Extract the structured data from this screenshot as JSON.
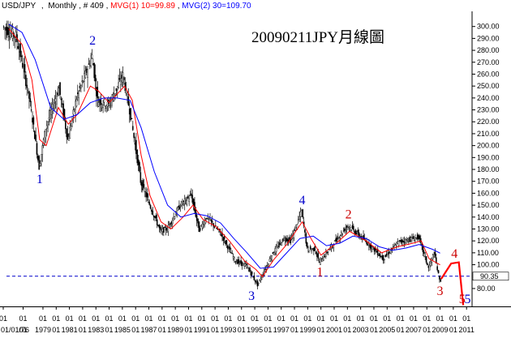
{
  "header": {
    "symbol": "USD/JPY",
    "sep": ",",
    "period": "Monthly",
    "bars": "# 409",
    "mvg1_label": "MVG(1) 10=99.89",
    "mvg2_label": "MVG(2) 30=109.70",
    "colors": {
      "mvg1": "#ff0000",
      "mvg2": "#0000ff"
    }
  },
  "chart_data": {
    "type": "candlestick",
    "title": "20090211JPY月線圖",
    "ylim": [
      65,
      310
    ],
    "y_ticks": [
      {
        "v": 300,
        "label": "300.00"
      },
      {
        "v": 290,
        "label": "290.00"
      },
      {
        "v": 280,
        "label": "280.00"
      },
      {
        "v": 270,
        "label": "270.00"
      },
      {
        "v": 260,
        "label": "260.00"
      },
      {
        "v": 250,
        "label": "250.00"
      },
      {
        "v": 240,
        "label": "240.00"
      },
      {
        "v": 230,
        "label": "230.00"
      },
      {
        "v": 220,
        "label": "220.00"
      },
      {
        "v": 210,
        "label": "210.00"
      },
      {
        "v": 200,
        "label": "200.00"
      },
      {
        "v": 190,
        "label": "190.00"
      },
      {
        "v": 180,
        "label": "180.00"
      },
      {
        "v": 170,
        "label": "170.00"
      },
      {
        "v": 160,
        "label": "160.00"
      },
      {
        "v": 150,
        "label": "150.00"
      },
      {
        "v": 140,
        "label": "140.00"
      },
      {
        "v": 130,
        "label": "130.00"
      },
      {
        "v": 120,
        "label": "120.00"
      },
      {
        "v": 110,
        "label": "110.00"
      },
      {
        "v": 100,
        "label": "100.00"
      },
      {
        "v": 80,
        "label": "80.00"
      }
    ],
    "last_price": {
      "v": 90.35,
      "label": "90.35"
    },
    "x_start": "1976-01",
    "x_end": "2011-06",
    "x_ticks": [
      {
        "date": "1976-01",
        "label": "01/01/76"
      },
      {
        "date": "1977-07",
        "label": "01"
      },
      {
        "date": "1979-01",
        "label": "1979"
      },
      {
        "date": "1980-01",
        "label": "01"
      },
      {
        "date": "1981-01",
        "label": "1981"
      },
      {
        "date": "1982-01",
        "label": "01"
      },
      {
        "date": "1983-01",
        "label": "1983"
      },
      {
        "date": "1984-01",
        "label": "01"
      },
      {
        "date": "1985-01",
        "label": "1985"
      },
      {
        "date": "1986-01",
        "label": "01"
      },
      {
        "date": "1987-01",
        "label": "1987"
      },
      {
        "date": "1988-01",
        "label": "01"
      },
      {
        "date": "1989-01",
        "label": "1989"
      },
      {
        "date": "1990-01",
        "label": "01"
      },
      {
        "date": "1991-01",
        "label": "1991"
      },
      {
        "date": "1992-01",
        "label": "01"
      },
      {
        "date": "1993-01",
        "label": "1993"
      },
      {
        "date": "1994-01",
        "label": "01"
      },
      {
        "date": "1995-01",
        "label": "1995"
      },
      {
        "date": "1996-01",
        "label": "01"
      },
      {
        "date": "1997-01",
        "label": "1997"
      },
      {
        "date": "1998-01",
        "label": "01"
      },
      {
        "date": "1999-01",
        "label": "1999"
      },
      {
        "date": "2000-01",
        "label": "01"
      },
      {
        "date": "2001-01",
        "label": "2001"
      },
      {
        "date": "2002-01",
        "label": "01"
      },
      {
        "date": "2003-01",
        "label": "2003"
      },
      {
        "date": "2004-01",
        "label": "01"
      },
      {
        "date": "2005-01",
        "label": "2005"
      },
      {
        "date": "2006-01",
        "label": "01"
      },
      {
        "date": "2007-01",
        "label": "2007"
      },
      {
        "date": "2008-01",
        "label": "01"
      },
      {
        "date": "2009-01",
        "label": "2009"
      },
      {
        "date": "2010-01",
        "label": "01"
      },
      {
        "date": "2011-01",
        "label": "2011"
      }
    ],
    "x_top_row": [
      "01",
      "01",
      "01",
      "01",
      "01",
      "01",
      "01",
      "01",
      "01",
      "01",
      "01",
      "01",
      "01",
      "01",
      "01",
      "01",
      "01",
      "01",
      "01",
      "01",
      "01",
      "01",
      "01",
      "01",
      "01",
      "01",
      "01",
      "01",
      "01",
      "01",
      "01",
      "01",
      "01",
      "01",
      "01",
      "01"
    ],
    "price_path": [
      [
        "1976-01",
        300
      ],
      [
        "1976-06",
        296
      ],
      [
        "1977-01",
        292
      ],
      [
        "1977-07",
        268
      ],
      [
        "1978-01",
        240
      ],
      [
        "1978-04",
        222
      ],
      [
        "1978-10",
        182
      ],
      [
        "1979-04",
        215
      ],
      [
        "1980-04",
        248
      ],
      [
        "1980-12",
        205
      ],
      [
        "1981-08",
        240
      ],
      [
        "1982-10",
        275
      ],
      [
        "1983-03",
        238
      ],
      [
        "1984-01",
        234
      ],
      [
        "1985-02",
        259
      ],
      [
        "1985-09",
        225
      ],
      [
        "1986-06",
        170
      ],
      [
        "1987-01",
        153
      ],
      [
        "1987-12",
        128
      ],
      [
        "1988-06",
        130
      ],
      [
        "1989-06",
        150
      ],
      [
        "1990-04",
        158
      ],
      [
        "1990-11",
        129
      ],
      [
        "1991-06",
        140
      ],
      [
        "1992-06",
        127
      ],
      [
        "1993-08",
        103
      ],
      [
        "1994-06",
        99
      ],
      [
        "1995-04",
        83
      ],
      [
        "1996-06",
        110
      ],
      [
        "1997-04",
        122
      ],
      [
        "1997-10",
        120
      ],
      [
        "1998-08",
        145
      ],
      [
        "1999-01",
        113
      ],
      [
        "1999-08",
        113
      ],
      [
        "1999-12",
        102
      ],
      [
        "2001-06",
        124
      ],
      [
        "2002-02",
        133
      ],
      [
        "2003-08",
        118
      ],
      [
        "2004-10",
        105
      ],
      [
        "2005-12",
        119
      ],
      [
        "2007-06",
        123
      ],
      [
        "2008-03",
        97
      ],
      [
        "2008-08",
        110
      ],
      [
        "2009-01",
        87
      ]
    ],
    "series": [
      {
        "name": "MVG(1) 10",
        "value": "99.89",
        "color": "#ff0000",
        "points": [
          [
            "1976-06",
            298
          ],
          [
            "1977-06",
            285
          ],
          [
            "1978-03",
            255
          ],
          [
            "1978-10",
            205
          ],
          [
            "1979-04",
            200
          ],
          [
            "1980-03",
            232
          ],
          [
            "1980-12",
            218
          ],
          [
            "1981-08",
            226
          ],
          [
            "1982-08",
            250
          ],
          [
            "1983-03",
            246
          ],
          [
            "1984-01",
            236
          ],
          [
            "1985-03",
            250
          ],
          [
            "1985-10",
            238
          ],
          [
            "1986-06",
            192
          ],
          [
            "1987-02",
            158
          ],
          [
            "1987-12",
            136
          ],
          [
            "1988-09",
            130
          ],
          [
            "1989-08",
            140
          ],
          [
            "1990-05",
            150
          ],
          [
            "1991-02",
            138
          ],
          [
            "1992-02",
            132
          ],
          [
            "1993-02",
            120
          ],
          [
            "1994-04",
            103
          ],
          [
            "1995-02",
            96
          ],
          [
            "1995-08",
            90
          ],
          [
            "1996-06",
            104
          ],
          [
            "1997-06",
            117
          ],
          [
            "1998-08",
            136
          ],
          [
            "1999-04",
            122
          ],
          [
            "2000-01",
            108
          ],
          [
            "2001-03",
            118
          ],
          [
            "2002-03",
            128
          ],
          [
            "2003-06",
            120
          ],
          [
            "2004-08",
            110
          ],
          [
            "2005-10",
            115
          ],
          [
            "2006-12",
            118
          ],
          [
            "2007-08",
            120
          ],
          [
            "2008-03",
            105
          ],
          [
            "2009-01",
            99.89
          ]
        ]
      },
      {
        "name": "MVG(2) 30",
        "value": "109.70",
        "color": "#0000ff",
        "points": [
          [
            "1976-06",
            302
          ],
          [
            "1977-06",
            295
          ],
          [
            "1978-06",
            272
          ],
          [
            "1979-08",
            232
          ],
          [
            "1980-08",
            222
          ],
          [
            "1981-08",
            226
          ],
          [
            "1982-08",
            236
          ],
          [
            "1983-08",
            240
          ],
          [
            "1984-08",
            240
          ],
          [
            "1985-08",
            238
          ],
          [
            "1986-06",
            215
          ],
          [
            "1987-06",
            178
          ],
          [
            "1988-06",
            150
          ],
          [
            "1989-06",
            140
          ],
          [
            "1990-06",
            143
          ],
          [
            "1991-06",
            141
          ],
          [
            "1992-06",
            135
          ],
          [
            "1993-06",
            122
          ],
          [
            "1994-06",
            110
          ],
          [
            "1995-06",
            97
          ],
          [
            "1996-06",
            98
          ],
          [
            "1997-06",
            110
          ],
          [
            "1998-06",
            122
          ],
          [
            "1999-06",
            124
          ],
          [
            "2000-06",
            116
          ],
          [
            "2001-06",
            118
          ],
          [
            "2002-06",
            124
          ],
          [
            "2003-06",
            122
          ],
          [
            "2004-06",
            115
          ],
          [
            "2005-06",
            112
          ],
          [
            "2006-06",
            114
          ],
          [
            "2007-06",
            117
          ],
          [
            "2008-06",
            113
          ],
          [
            "2009-01",
            109.7
          ]
        ]
      }
    ],
    "annotations": {
      "title": "20090211JPY月線圖",
      "waves": [
        {
          "label": "1",
          "date": "1978-10",
          "value": 178,
          "color": "#0000cc",
          "pos": "below"
        },
        {
          "label": "2",
          "date": "1982-10",
          "value": 282,
          "color": "#0000cc",
          "pos": "above"
        },
        {
          "label": "3",
          "date": "1995-04",
          "value": 80,
          "color": "#0000cc",
          "pos": "below-left"
        },
        {
          "label": "4",
          "date": "1998-08",
          "value": 148,
          "color": "#0000cc",
          "pos": "above"
        },
        {
          "label": "1",
          "date": "1999-12",
          "value": 100,
          "color": "#cc0000",
          "pos": "below"
        },
        {
          "label": "2",
          "date": "2002-02",
          "value": 136,
          "color": "#cc0000",
          "pos": "above"
        },
        {
          "label": "3",
          "date": "2009-01",
          "value": 84,
          "color": "#cc0000",
          "pos": "below"
        },
        {
          "label": "4",
          "date": "2010-02",
          "value": 103,
          "color": "#cc0000",
          "pos": "above"
        },
        {
          "label": "5",
          "date": "2010-09",
          "value": 66,
          "color": "#cc0000",
          "pos": "below"
        },
        {
          "label": "5",
          "date": "2011-02",
          "value": 66,
          "color": "#0000cc",
          "pos": "below"
        }
      ],
      "forecast_path": [
        [
          "2009-02",
          88
        ],
        [
          "2009-11",
          101
        ],
        [
          "2010-06",
          102
        ],
        [
          "2010-10",
          66
        ]
      ],
      "forecast_color": "#ff0000",
      "support": {
        "value": 90.35,
        "color": "#0000cc"
      }
    },
    "grid": false,
    "legend": "top-left"
  }
}
